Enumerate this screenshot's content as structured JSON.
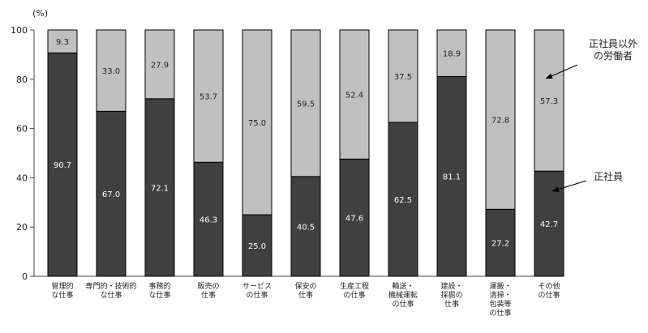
{
  "chart_data": {
    "type": "bar",
    "stacked": true,
    "y_unit": "(%)",
    "ylim": [
      0,
      100
    ],
    "yticks": [
      0,
      20,
      40,
      60,
      80,
      100
    ],
    "grid": false,
    "categories": [
      [
        "管理的",
        "な仕事"
      ],
      [
        "専門的・技術的",
        "な仕事"
      ],
      [
        "事務的",
        "な仕事"
      ],
      [
        "販売の",
        "仕事"
      ],
      [
        "サービス",
        "の仕事"
      ],
      [
        "保安の",
        "仕事"
      ],
      [
        "生産工程",
        "の仕事"
      ],
      [
        "輸送・",
        "機械運転",
        "の仕事"
      ],
      [
        "建設・",
        "採掘の",
        "仕事"
      ],
      [
        "運搬・",
        "清掃・",
        "包装等",
        "の仕事"
      ],
      [
        "その他",
        "の仕事"
      ]
    ],
    "series": [
      {
        "name": "正社員",
        "color": "#404040",
        "label_color": "#ffffff",
        "values": [
          90.7,
          67.0,
          72.1,
          46.3,
          25.0,
          40.5,
          47.6,
          62.5,
          81.1,
          27.2,
          42.7
        ]
      },
      {
        "name": "正社員以外の労働者",
        "color": "#c0c0c0",
        "label_color": "#222222",
        "values": [
          9.3,
          33.0,
          27.9,
          53.7,
          75.0,
          59.5,
          52.4,
          37.5,
          18.9,
          72.8,
          57.3
        ]
      }
    ],
    "annotations": [
      {
        "series_index": 1,
        "lines": [
          "正社員以外",
          "の労働者"
        ]
      },
      {
        "series_index": 0,
        "lines": [
          "正社員"
        ]
      }
    ]
  }
}
